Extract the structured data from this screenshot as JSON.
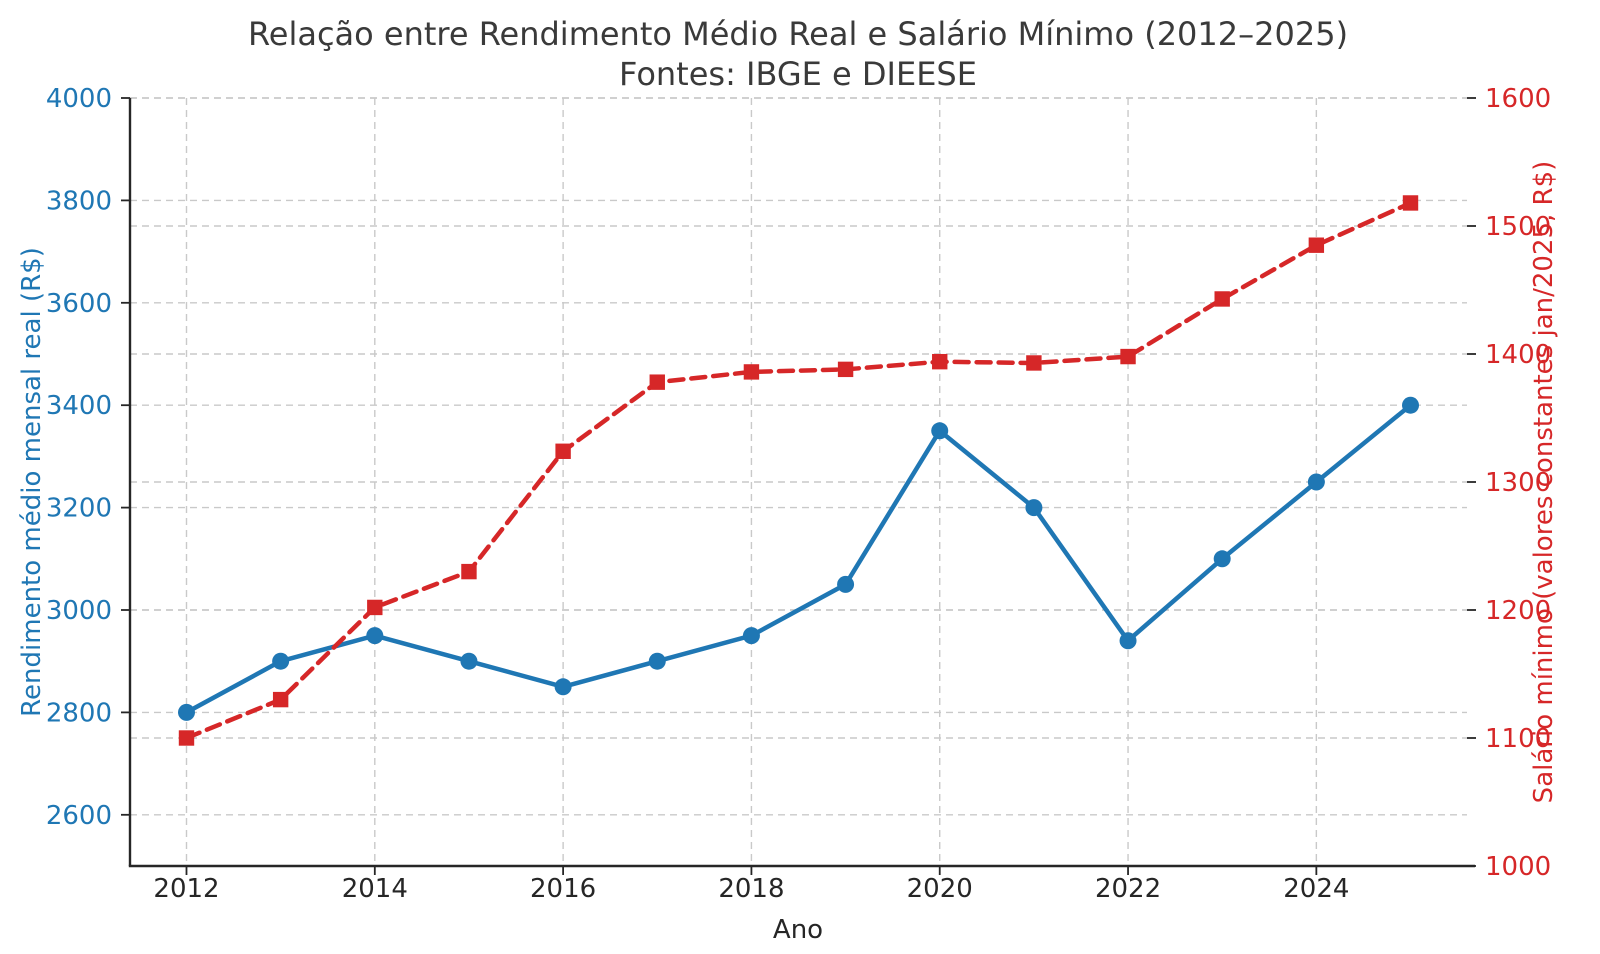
{
  "title": "Relação entre Rendimento Médio Real e Salário Mínimo (2012–2025)",
  "subtitle": "Fontes: IBGE e DIEESE",
  "chart_data": {
    "type": "line",
    "x": [
      2012,
      2013,
      2014,
      2015,
      2016,
      2017,
      2018,
      2019,
      2020,
      2021,
      2022,
      2023,
      2024,
      2025
    ],
    "xlabel": "Ano",
    "xticks": [
      2012,
      2014,
      2016,
      2018,
      2020,
      2022,
      2024
    ],
    "xlim": [
      2011.4,
      2025.6
    ],
    "grid": true,
    "legend": "none",
    "series": [
      {
        "name": "Rendimento médio mensal real",
        "axis": "left",
        "color": "#1f77b4",
        "marker": "circle",
        "line": "solid",
        "values": [
          2800,
          2900,
          2950,
          2900,
          2850,
          2900,
          2950,
          3050,
          3350,
          3200,
          2940,
          3100,
          3250,
          3400
        ]
      },
      {
        "name": "Salário mínimo (valores constantes jan/2025)",
        "axis": "right",
        "color": "#d62728",
        "marker": "square",
        "line": "dashed",
        "values": [
          1100,
          1130,
          1202,
          1230,
          1324,
          1378,
          1386,
          1388,
          1394,
          1393,
          1398,
          1443,
          1485,
          1518
        ]
      }
    ],
    "left_axis": {
      "label": "Rendimento médio mensal real (R$)",
      "color": "#1f77b4",
      "ticks": [
        2600,
        2800,
        3000,
        3200,
        3400,
        3600,
        3800,
        4000
      ],
      "lim": [
        2500,
        4000
      ]
    },
    "right_axis": {
      "label": "Salário mínimo (valores constantes jan/2025, R$)",
      "color": "#d62728",
      "ticks": [
        1000,
        1100,
        1200,
        1300,
        1400,
        1500,
        1600
      ],
      "lim": [
        1000,
        1600
      ]
    },
    "colors": {
      "grid": "#c9c9c9",
      "spine": "#262626",
      "title": "#3a3a3a"
    }
  }
}
